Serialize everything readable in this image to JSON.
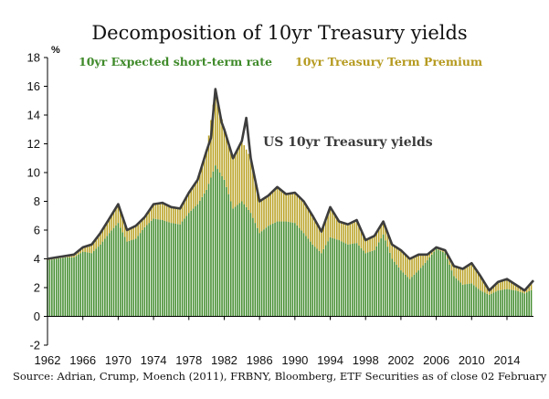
{
  "chart_data": {
    "type": "bar",
    "title": "Decomposition of 10yr Treasury yields",
    "ylabel": "%",
    "xlabel": "",
    "ylim": [
      -2,
      18
    ],
    "yticks": [
      "-2",
      "0",
      "2",
      "4",
      "6",
      "8",
      "10",
      "12",
      "14",
      "16",
      "18"
    ],
    "xlim": [
      1962,
      2017
    ],
    "xticks": [
      "1962",
      "1966",
      "1970",
      "1974",
      "1978",
      "1982",
      "1986",
      "1990",
      "1994",
      "1998",
      "2002",
      "2006",
      "2010",
      "2014"
    ],
    "legend": {
      "expected": "10yr Expected short-term rate",
      "premium": "10yr Treasury Term Premium"
    },
    "annotation": "US 10yr Treasury yields",
    "source": "Source: Adrian, Crump, Moench (2011), FRBNY, Bloomberg, ETF Securities as of close 02 February 2017",
    "colors": {
      "expected": "#3f8a2a",
      "premium": "#b8a020",
      "yield_line": "#3d3d3d"
    },
    "series": [
      {
        "name": "US 10yr Treasury yields",
        "x": [
          1962,
          1963,
          1964,
          1965,
          1966,
          1967,
          1968,
          1969,
          1970,
          1971,
          1972,
          1973,
          1974,
          1975,
          1976,
          1977,
          1978,
          1979,
          1980,
          1980.5,
          1981,
          1981.7,
          1982,
          1983,
          1984,
          1984.5,
          1985,
          1986,
          1987,
          1988,
          1989,
          1990,
          1991,
          1992,
          1993,
          1994,
          1995,
          1996,
          1997,
          1998,
          1999,
          2000,
          2001,
          2002,
          2003,
          2004,
          2005,
          2006,
          2007,
          2008,
          2009,
          2010,
          2011,
          2012,
          2013,
          2014,
          2015,
          2016,
          2017
        ],
        "values": [
          4.0,
          4.1,
          4.2,
          4.3,
          4.8,
          5.0,
          5.8,
          6.8,
          7.8,
          6.0,
          6.3,
          6.9,
          7.8,
          7.9,
          7.6,
          7.5,
          8.6,
          9.5,
          11.5,
          12.4,
          15.8,
          13.5,
          13.0,
          11.0,
          12.2,
          13.8,
          11.0,
          8.0,
          8.4,
          9.0,
          8.5,
          8.6,
          8.0,
          7.0,
          5.9,
          7.6,
          6.6,
          6.4,
          6.7,
          5.3,
          5.6,
          6.6,
          5.0,
          4.6,
          4.0,
          4.3,
          4.3,
          4.8,
          4.6,
          3.5,
          3.3,
          3.7,
          2.8,
          1.8,
          2.4,
          2.6,
          2.2,
          1.8,
          2.5
        ]
      },
      {
        "name": "10yr Expected short-term rate",
        "x": [
          1962,
          1963,
          1964,
          1965,
          1966,
          1967,
          1968,
          1969,
          1970,
          1971,
          1972,
          1973,
          1974,
          1975,
          1976,
          1977,
          1978,
          1979,
          1980,
          1981,
          1982,
          1983,
          1984,
          1985,
          1986,
          1987,
          1988,
          1989,
          1990,
          1991,
          1992,
          1993,
          1994,
          1995,
          1996,
          1997,
          1998,
          1999,
          2000,
          2001,
          2002,
          2003,
          2004,
          2005,
          2006,
          2007,
          2008,
          2009,
          2010,
          2011,
          2012,
          2013,
          2014,
          2015,
          2016,
          2017
        ],
        "values": [
          3.9,
          4.0,
          4.1,
          4.1,
          4.5,
          4.4,
          5.0,
          5.8,
          6.5,
          5.2,
          5.4,
          6.2,
          6.8,
          6.7,
          6.5,
          6.4,
          7.2,
          7.8,
          8.8,
          10.5,
          9.5,
          7.5,
          8.0,
          7.2,
          5.8,
          6.3,
          6.6,
          6.6,
          6.5,
          5.8,
          5.0,
          4.4,
          5.5,
          5.3,
          5.0,
          5.1,
          4.4,
          4.6,
          5.7,
          4.0,
          3.2,
          2.6,
          3.2,
          3.9,
          4.7,
          4.4,
          2.8,
          2.2,
          2.3,
          1.8,
          1.5,
          1.8,
          1.9,
          1.8,
          1.6,
          1.9
        ]
      },
      {
        "name": "10yr Treasury Term Premium",
        "x": [
          1962,
          1963,
          1964,
          1965,
          1966,
          1967,
          1968,
          1969,
          1970,
          1971,
          1972,
          1973,
          1974,
          1975,
          1976,
          1977,
          1978,
          1979,
          1980,
          1981,
          1982,
          1983,
          1984,
          1985,
          1986,
          1987,
          1988,
          1989,
          1990,
          1991,
          1992,
          1993,
          1994,
          1995,
          1996,
          1997,
          1998,
          1999,
          2000,
          2001,
          2002,
          2003,
          2004,
          2005,
          2006,
          2007,
          2008,
          2009,
          2010,
          2011,
          2012,
          2013,
          2014,
          2015,
          2016,
          2017
        ],
        "values": [
          0.1,
          0.1,
          0.1,
          0.2,
          0.3,
          0.6,
          0.8,
          1.0,
          1.3,
          0.8,
          0.9,
          0.7,
          1.0,
          1.2,
          1.1,
          1.1,
          1.4,
          1.7,
          2.7,
          5.3,
          3.5,
          3.5,
          4.2,
          3.8,
          2.2,
          2.1,
          2.4,
          1.9,
          2.1,
          2.2,
          2.0,
          1.5,
          2.1,
          1.3,
          1.4,
          1.6,
          0.9,
          1.0,
          0.9,
          1.0,
          1.4,
          1.4,
          1.1,
          0.4,
          0.1,
          0.2,
          0.7,
          1.1,
          1.4,
          1.0,
          0.3,
          0.6,
          0.7,
          0.4,
          0.2,
          0.6
        ]
      }
    ]
  }
}
